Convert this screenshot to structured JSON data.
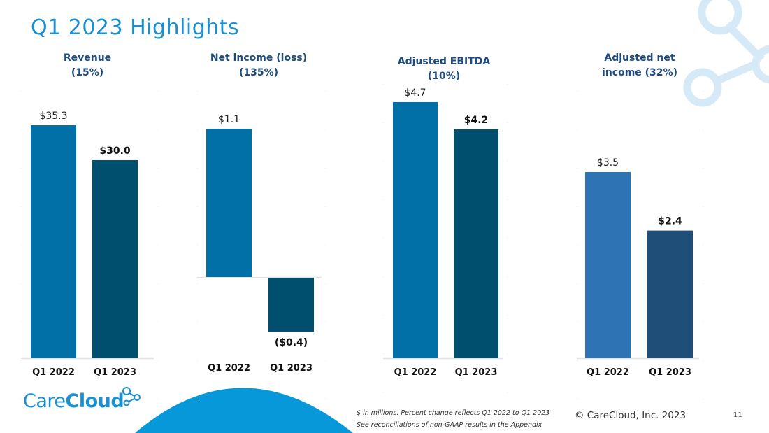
{
  "slide": {
    "title": "Q1 2023 Highlights",
    "footnote_line1": "$ in millions. Percent change reflects Q1 2022 to Q1 2023",
    "footnote_line2": "See reconciliations of non-GAAP results in the Appendix",
    "copyright": "© CareCloud, Inc. 2023",
    "page_number": "11",
    "logo": {
      "part1": "Care",
      "part2": "Cloud",
      "icon": "molecule-icon"
    },
    "colors": {
      "title": "#1a8fd1",
      "chart_title": "#1e4b7e",
      "bar_2022": "#0070a6",
      "bar_2023": "#004f6e",
      "bar_2022_alt": "#2e74b5",
      "bar_2023_alt": "#1f4e79",
      "arc": "#0798d9",
      "decor": "#d6e9f7"
    }
  },
  "chart_data": [
    {
      "type": "bar",
      "title": "Revenue",
      "subtitle": "(15%)",
      "categories": [
        "Q1 2022",
        "Q1 2023"
      ],
      "values": [
        35.3,
        30.0
      ],
      "labels": [
        "$35.3",
        "$30.0"
      ],
      "ylim": [
        0,
        40
      ],
      "grid": false,
      "xlabel": "",
      "ylabel": ""
    },
    {
      "type": "bar",
      "title": "Net income (loss)",
      "subtitle": "(135%)",
      "categories": [
        "Q1 2022",
        "Q1 2023"
      ],
      "values": [
        1.1,
        -0.4
      ],
      "labels": [
        "$1.1",
        "($0.4)"
      ],
      "ylim": [
        -0.6,
        1.4
      ],
      "grid": false,
      "xlabel": "",
      "ylabel": ""
    },
    {
      "type": "bar",
      "title": "Adjusted EBITDA",
      "subtitle": "(10%)",
      "categories": [
        "Q1 2022",
        "Q1 2023"
      ],
      "values": [
        4.7,
        4.2
      ],
      "labels": [
        "$4.7",
        "$4.2"
      ],
      "ylim": [
        0,
        5
      ],
      "grid": false,
      "xlabel": "",
      "ylabel": ""
    },
    {
      "type": "bar",
      "title": "Adjusted net",
      "subtitle": "income  (32%)",
      "categories": [
        "Q1 2022",
        "Q1 2023"
      ],
      "values": [
        3.5,
        2.4
      ],
      "labels": [
        "$3.5",
        "$2.4"
      ],
      "ylim": [
        0,
        5
      ],
      "grid": false,
      "xlabel": "",
      "ylabel": ""
    }
  ]
}
